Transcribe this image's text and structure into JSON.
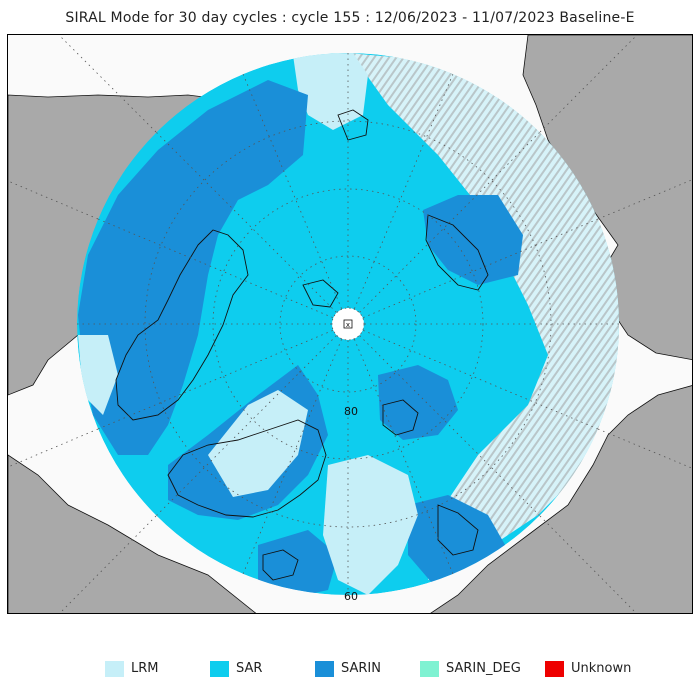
{
  "title": "SIRAL Mode for 30 day cycles : cycle 155 : 12/06/2023 - 11/07/2023 Baseline-E",
  "map": {
    "latitude_labels": [
      "80",
      "60"
    ],
    "pole_marker": "x",
    "colors": {
      "ocean": "#fafafa",
      "land": "#a9a9a9",
      "coastline": "#111111",
      "graticule": "#555555"
    }
  },
  "legend": [
    {
      "label": "LRM",
      "color": "#c6eff8"
    },
    {
      "label": "SAR",
      "color": "#0ecdee"
    },
    {
      "label": "SARIN",
      "color": "#1a8fd8"
    },
    {
      "label": "SARIN_DEG",
      "color": "#7ff2d2"
    },
    {
      "label": "Unknown",
      "color": "#ee0000"
    }
  ]
}
